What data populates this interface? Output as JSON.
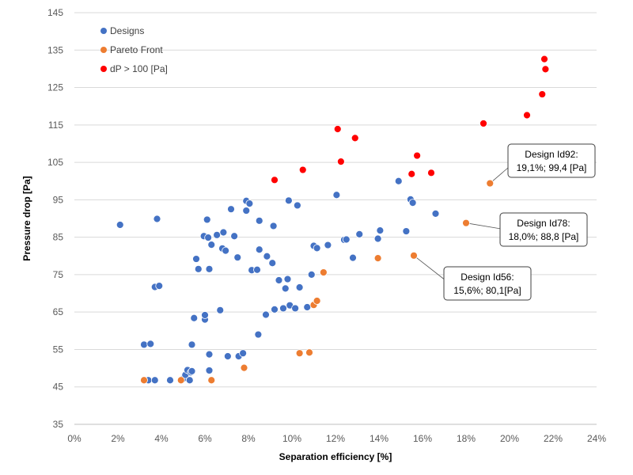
{
  "chart_data": {
    "type": "scatter",
    "title": "",
    "xlabel": "Separation efficiency [%]",
    "ylabel": "Pressure drop [Pa]",
    "xlim": [
      0,
      24
    ],
    "ylim": [
      35,
      145
    ],
    "x_ticks": [
      "0%",
      "2%",
      "4%",
      "6%",
      "8%",
      "10%",
      "12%",
      "14%",
      "16%",
      "18%",
      "20%",
      "22%",
      "24%"
    ],
    "y_ticks": [
      "35",
      "45",
      "55",
      "65",
      "75",
      "85",
      "95",
      "105",
      "115",
      "125",
      "135",
      "145"
    ],
    "grid": "horizontal",
    "legend_position": "top-left",
    "series": [
      {
        "name": "Designs",
        "color": "#4472c4",
        "points": [
          [
            2.1,
            88.3
          ],
          [
            3.2,
            56.3
          ],
          [
            3.4,
            46.8
          ],
          [
            3.5,
            56.5
          ],
          [
            3.7,
            71.7
          ],
          [
            3.7,
            46.8
          ],
          [
            3.8,
            89.9
          ],
          [
            3.9,
            72.0
          ],
          [
            4.4,
            46.8
          ],
          [
            5.0,
            47.2
          ],
          [
            5.1,
            48.2
          ],
          [
            5.2,
            49.5
          ],
          [
            5.3,
            46.8
          ],
          [
            5.35,
            48.9
          ],
          [
            5.4,
            49.2
          ],
          [
            5.4,
            56.3
          ],
          [
            5.5,
            63.4
          ],
          [
            5.6,
            79.2
          ],
          [
            5.7,
            76.5
          ],
          [
            5.95,
            85.3
          ],
          [
            6.0,
            63.0
          ],
          [
            6.0,
            64.2
          ],
          [
            6.1,
            89.7
          ],
          [
            6.15,
            84.9
          ],
          [
            6.2,
            53.7
          ],
          [
            6.2,
            49.4
          ],
          [
            6.2,
            76.5
          ],
          [
            6.3,
            83.0
          ],
          [
            6.55,
            85.6
          ],
          [
            6.7,
            65.5
          ],
          [
            6.8,
            82.0
          ],
          [
            6.85,
            86.3
          ],
          [
            6.95,
            81.4
          ],
          [
            7.05,
            53.2
          ],
          [
            7.2,
            92.5
          ],
          [
            7.35,
            85.3
          ],
          [
            7.5,
            79.6
          ],
          [
            7.55,
            53.2
          ],
          [
            7.75,
            54.0
          ],
          [
            7.9,
            94.7
          ],
          [
            7.9,
            92.1
          ],
          [
            8.05,
            94.0
          ],
          [
            8.15,
            76.2
          ],
          [
            8.4,
            76.3
          ],
          [
            8.45,
            59.0
          ],
          [
            8.5,
            81.7
          ],
          [
            8.5,
            89.4
          ],
          [
            8.8,
            64.3
          ],
          [
            8.85,
            79.9
          ],
          [
            9.1,
            78.1
          ],
          [
            9.15,
            88.0
          ],
          [
            9.2,
            65.7
          ],
          [
            9.4,
            73.5
          ],
          [
            9.6,
            66.0
          ],
          [
            9.7,
            71.3
          ],
          [
            9.85,
            94.8
          ],
          [
            9.8,
            73.8
          ],
          [
            9.9,
            66.8
          ],
          [
            10.15,
            66.0
          ],
          [
            10.25,
            93.5
          ],
          [
            10.35,
            71.6
          ],
          [
            10.7,
            66.3
          ],
          [
            10.9,
            75.0
          ],
          [
            11.0,
            82.7
          ],
          [
            11.15,
            82.1
          ],
          [
            11.65,
            82.9
          ],
          [
            12.05,
            96.3
          ],
          [
            12.4,
            84.3
          ],
          [
            12.5,
            84.4
          ],
          [
            12.8,
            79.5
          ],
          [
            13.1,
            85.8
          ],
          [
            13.95,
            84.6
          ],
          [
            14.05,
            86.8
          ],
          [
            14.9,
            100.0
          ],
          [
            15.25,
            86.6
          ],
          [
            15.45,
            95.1
          ],
          [
            15.55,
            94.2
          ],
          [
            16.6,
            91.3
          ]
        ]
      },
      {
        "name": "Pareto Front",
        "color": "#ed7d31",
        "points": [
          [
            3.2,
            46.8
          ],
          [
            4.9,
            46.8
          ],
          [
            6.3,
            46.8
          ],
          [
            7.8,
            50.1
          ],
          [
            10.35,
            54.0
          ],
          [
            10.8,
            54.2
          ],
          [
            11.0,
            66.9
          ],
          [
            11.15,
            68.0
          ],
          [
            11.45,
            75.6
          ],
          [
            13.95,
            79.4
          ],
          [
            15.6,
            80.1
          ],
          [
            18.0,
            88.8
          ],
          [
            19.1,
            99.4
          ]
        ]
      },
      {
        "name": "dP > 100 [Pa]",
        "color": "#ff0000",
        "points": [
          [
            9.2,
            100.3
          ],
          [
            10.5,
            103.0
          ],
          [
            12.1,
            113.9
          ],
          [
            12.25,
            105.2
          ],
          [
            12.9,
            111.5
          ],
          [
            15.5,
            101.9
          ],
          [
            15.75,
            106.8
          ],
          [
            16.4,
            102.2
          ],
          [
            18.8,
            115.4
          ],
          [
            20.8,
            117.6
          ],
          [
            21.5,
            123.2
          ],
          [
            21.6,
            132.6
          ],
          [
            21.65,
            129.9
          ]
        ]
      }
    ],
    "annotations": [
      {
        "line1": "Design Id92:",
        "line2": "19,1%; 99,4 [Pa]",
        "x": 19.1,
        "y": 99.4
      },
      {
        "line1": "Design Id78:",
        "line2": "18,0%; 88,8 [Pa]",
        "x": 18.0,
        "y": 88.8
      },
      {
        "line1": "Design Id56:",
        "line2": "15,6%; 80,1[Pa]",
        "x": 15.6,
        "y": 80.1
      }
    ]
  }
}
